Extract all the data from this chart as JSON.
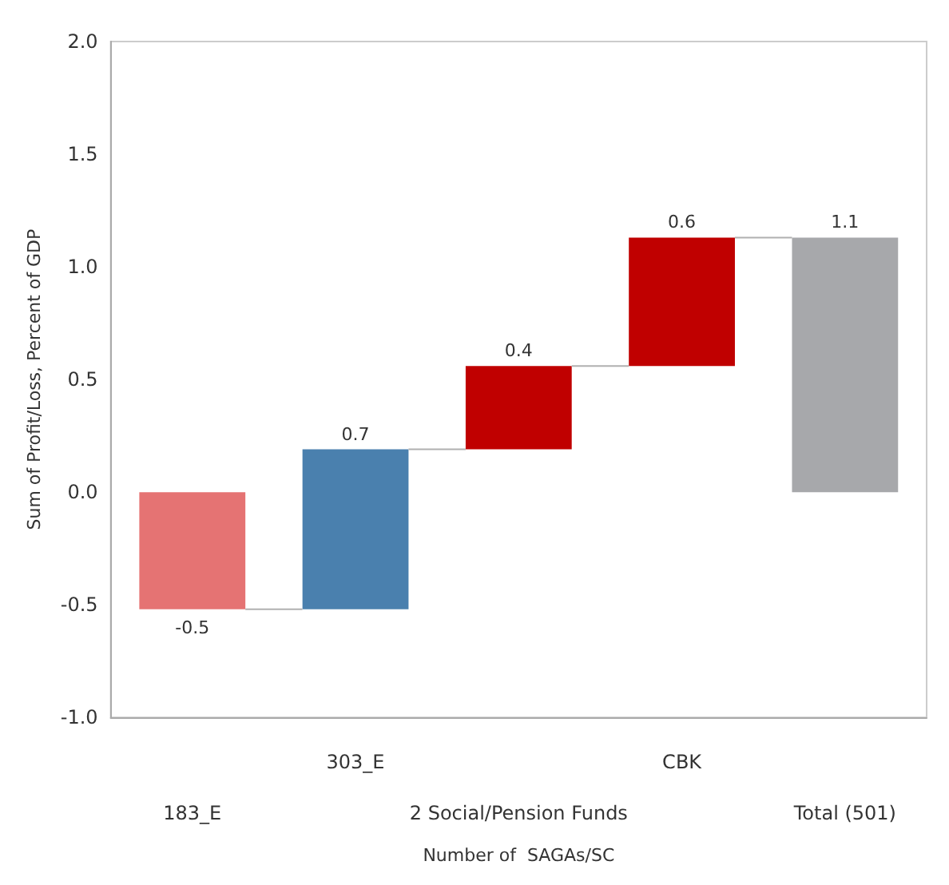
{
  "chart_data": {
    "type": "bar",
    "xlabel": "Number of  SAGAs/SC",
    "ylabel": "Sum of Profit/Loss, Percent of GDP",
    "categories": [
      "183_E",
      "303_E",
      "2 Social/Pension Funds",
      "CBK",
      "Total (501)"
    ],
    "base": [
      0,
      -0.52,
      0.19,
      0.56,
      0
    ],
    "values": [
      -0.52,
      0.71,
      0.37,
      0.57,
      1.13
    ],
    "value_labels": [
      "-0.5",
      "0.7",
      "0.4",
      "0.6",
      "1.1"
    ],
    "colors": [
      "#e57373",
      "#4a80ae",
      "#c00000",
      "#c00000",
      "#a7a8ab"
    ],
    "ylim": [
      -1,
      2
    ],
    "yticks": [
      {
        "value": -1,
        "label": "-1.0"
      },
      {
        "value": -0.5,
        "label": "-0.5"
      },
      {
        "value": 0,
        "label": "0.0"
      },
      {
        "value": 0.5,
        "label": "0.5"
      },
      {
        "value": 1,
        "label": "1.0"
      },
      {
        "value": 1.5,
        "label": "1.5"
      },
      {
        "value": 2,
        "label": "2.0"
      }
    ],
    "grid": false
  }
}
